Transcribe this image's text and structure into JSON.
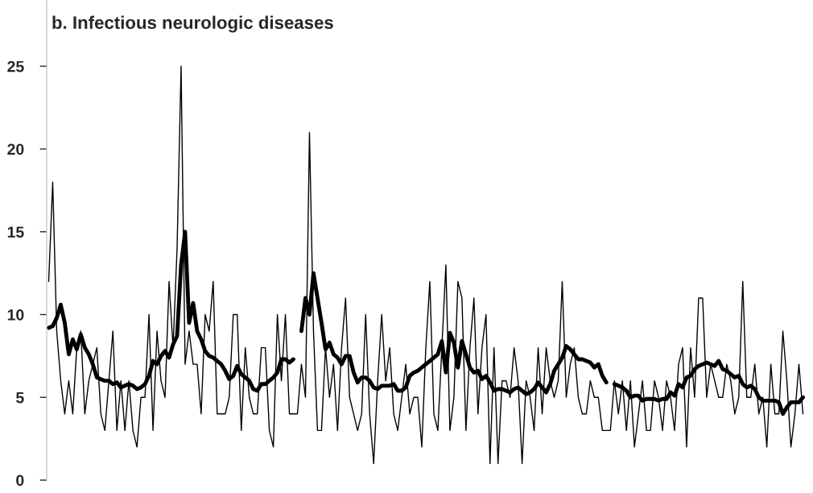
{
  "chart_data": {
    "type": "line",
    "title": "b. Infectious neurologic diseases",
    "categories": [
      null,
      null,
      null,
      null,
      null,
      null,
      null,
      null,
      null,
      null,
      null,
      null,
      null,
      null,
      null,
      null,
      null,
      null,
      null,
      null,
      null,
      null,
      null,
      null,
      null,
      null,
      null,
      null,
      null,
      null,
      null,
      null,
      null,
      null,
      null,
      null,
      null,
      null,
      null,
      null,
      null,
      null,
      null,
      null,
      null,
      null,
      null,
      null,
      null,
      null,
      null,
      null,
      null,
      null,
      null,
      null,
      null,
      null,
      null,
      null,
      null,
      null,
      null,
      null,
      null,
      null,
      null,
      null,
      null,
      null,
      null,
      null,
      null,
      null,
      null,
      null,
      null,
      null,
      null,
      null,
      null,
      null,
      null,
      null,
      null,
      null,
      null,
      null,
      null,
      null,
      null,
      null,
      null,
      null,
      null,
      null,
      null,
      null,
      null,
      null,
      null,
      null,
      null,
      null,
      null,
      null,
      null,
      null,
      null,
      null,
      null,
      null,
      null,
      null,
      null,
      null,
      null,
      null,
      null,
      null,
      null,
      null,
      null,
      null,
      null,
      null,
      null,
      null,
      null,
      null,
      null,
      null,
      null,
      null,
      null,
      null,
      null,
      null,
      null,
      null,
      null,
      null,
      null,
      null,
      null,
      null,
      null,
      null,
      null,
      null,
      null,
      null,
      null,
      null,
      null,
      null,
      null,
      null,
      null,
      null,
      null,
      null,
      null,
      null,
      null,
      null,
      null,
      null,
      null,
      null,
      null,
      null,
      null,
      null,
      null,
      null,
      null,
      null,
      null,
      null,
      null,
      null,
      null,
      null,
      null,
      null,
      null,
      null,
      null
    ],
    "series": [
      {
        "color": "#000000",
        "values": [
          12,
          18,
          9,
          6,
          4,
          6,
          4,
          8,
          9,
          4,
          6,
          7,
          8,
          4,
          3,
          6,
          9,
          3,
          6,
          3,
          6,
          3,
          2,
          5,
          5,
          10,
          3,
          9,
          6,
          5,
          12,
          8,
          14,
          25,
          7,
          9,
          7,
          7,
          4,
          10,
          9,
          12,
          4,
          4,
          4,
          5,
          10,
          10,
          3,
          8,
          5,
          4,
          4,
          8,
          8,
          3,
          2,
          10,
          6,
          10,
          4,
          4,
          4,
          7,
          5,
          21,
          9,
          3,
          3,
          8,
          5,
          7,
          3,
          8,
          11,
          5,
          4,
          3,
          4,
          10,
          4,
          1,
          6,
          10,
          6,
          8,
          4,
          3,
          5,
          7,
          4,
          5,
          5,
          2,
          8,
          12,
          4,
          3,
          8,
          13,
          3,
          5,
          12,
          11,
          3,
          8,
          11,
          4,
          8,
          10,
          1,
          8,
          1,
          6,
          6,
          5,
          8,
          6,
          1,
          6,
          5,
          3,
          8,
          4,
          8,
          6,
          5,
          6,
          12,
          5,
          7,
          8,
          5,
          4,
          4,
          6,
          5,
          5,
          3,
          3,
          3,
          6,
          4,
          6,
          3,
          6,
          2,
          4,
          6,
          3,
          3,
          6,
          5,
          3,
          6,
          5,
          3,
          7,
          8,
          2,
          8,
          5,
          11,
          11,
          5,
          7,
          6,
          5,
          5,
          7,
          6,
          4,
          5,
          12,
          5,
          5,
          7,
          4,
          5,
          2,
          7,
          4,
          4,
          9,
          6,
          2,
          4,
          7,
          4
        ]
      },
      {
        "color": "#000000",
        "values": [
          9.2,
          9.3,
          9.8,
          10.6,
          9.5,
          7.6,
          8.5,
          7.9,
          8.8,
          8.0,
          7.6,
          7.0,
          6.2,
          6.1,
          6.0,
          6.0,
          5.8,
          5.9,
          5.6,
          5.7,
          5.8,
          5.7,
          5.5,
          5.6,
          5.8,
          6.3,
          7.2,
          7.0,
          7.5,
          7.8,
          7.4,
          8.2,
          8.7,
          13,
          15,
          9.5,
          10.7,
          9.0,
          8.5,
          7.8,
          7.5,
          7.4,
          7.2,
          7.0,
          6.6,
          6.1,
          6.3,
          6.9,
          6.4,
          6.2,
          6.0,
          5.5,
          5.4,
          5.8,
          5.8,
          6.0,
          6.2,
          6.5,
          7.3,
          7.3,
          7.1,
          7.3,
          null,
          9.0,
          11,
          10,
          12.5,
          11,
          9.5,
          7.9,
          8.3,
          7.6,
          7.4,
          7.0,
          7.5,
          7.5,
          6.5,
          5.9,
          6.2,
          6.2,
          6.0,
          5.6,
          5.5,
          5.7,
          5.7,
          5.7,
          5.8,
          5.4,
          5.4,
          5.6,
          6.3,
          6.5,
          6.6,
          6.8,
          7.0,
          7.2,
          7.4,
          7.6,
          8.4,
          6.5,
          8.9,
          8.3,
          6.8,
          8.4,
          7.6,
          6.8,
          6.5,
          6.6,
          6.1,
          6.3,
          5.9,
          5.4,
          5.5,
          5.5,
          5.4,
          5.3,
          5.5,
          5.6,
          5.4,
          5.2,
          5.3,
          5.5,
          5.9,
          5.6,
          5.3,
          5.8,
          6.6,
          7.0,
          7.4,
          8.1,
          7.9,
          7.6,
          7.3,
          7.3,
          7.2,
          7.1,
          6.8,
          7.0,
          6.3,
          5.9,
          null,
          5.8,
          5.7,
          5.6,
          5.4,
          5.0,
          5.1,
          5.1,
          4.8,
          4.9,
          4.9,
          4.9,
          4.8,
          4.9,
          4.9,
          5.3,
          5.1,
          5.8,
          5.6,
          6.2,
          6.3,
          6.7,
          6.9,
          7.0,
          7.1,
          7.0,
          6.9,
          7.2,
          6.7,
          6.6,
          6.4,
          6.2,
          6.3,
          5.8,
          5.6,
          5.7,
          5.5,
          5.0,
          4.8,
          4.8,
          4.8,
          4.8,
          4.7,
          4.0,
          4.4,
          4.7,
          4.7,
          4.7,
          5.0
        ]
      }
    ],
    "ylim": [
      0,
      29
    ],
    "yticks": [
      0,
      5,
      10,
      15,
      20,
      25
    ],
    "tick_labels": "y"
  }
}
